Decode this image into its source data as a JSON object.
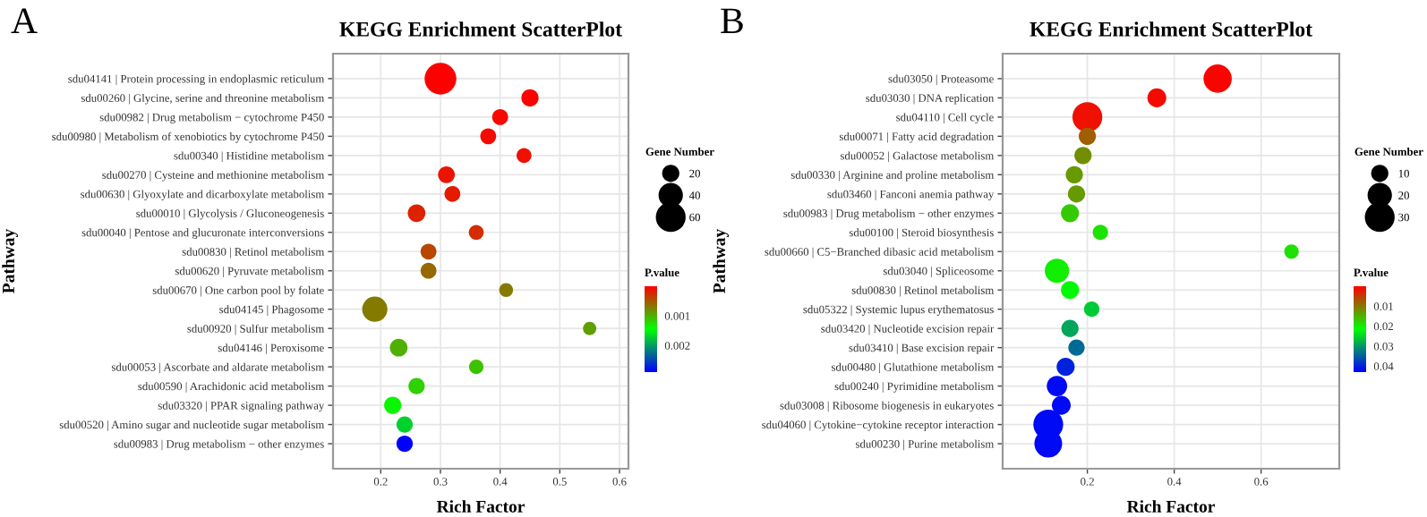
{
  "chart_data": [
    {
      "type": "bubble",
      "title": "KEGG Enrichment ScatterPlot",
      "xlabel": "Rich Factor",
      "ylabel": "Pathway",
      "legend_title": "Gene Number",
      "clabel": "P.value",
      "annotations": [
        "A"
      ],
      "orientation": "horizontal",
      "grid": true,
      "categories": [
        "sdu04141 | Protein processing in endoplasmic reticulum",
        "sdu00260 | Glycine, serine and threonine metabolism",
        "sdu00982 | Drug metabolism − cytochrome P450",
        "sdu00980 | Metabolism of xenobiotics by cytochrome P450",
        "sdu00340 | Histidine metabolism",
        "sdu00270 | Cysteine and methionine metabolism",
        "sdu00630 | Glyoxylate and dicarboxylate metabolism",
        "sdu00010 | Glycolysis / Gluconeogenesis",
        "sdu00040 | Pentose and glucuronate interconversions",
        "sdu00830 | Retinol metabolism",
        "sdu00620 | Pyruvate metabolism",
        "sdu00670 | One carbon pool by folate",
        "sdu04145 | Phagosome",
        "sdu00920 | Sulfur metabolism",
        "sdu04146 | Peroxisome",
        "sdu00053 | Ascorbate and aldarate metabolism",
        "sdu00590 | Arachidonic acid metabolism",
        "sdu03320 | PPAR signaling pathway",
        "sdu00520 | Amino sugar and nucleotide sugar metabolism",
        "sdu00983 | Drug metabolism − other enzymes"
      ],
      "values": [
        0.3,
        0.45,
        0.4,
        0.38,
        0.44,
        0.31,
        0.32,
        0.26,
        0.36,
        0.28,
        0.28,
        0.41,
        0.19,
        0.55,
        0.23,
        0.36,
        0.26,
        0.22,
        0.24,
        0.24
      ],
      "sizes": [
        68,
        20,
        17,
        17,
        15,
        19,
        17,
        21,
        15,
        17,
        17,
        13,
        43,
        12,
        21,
        14,
        18,
        20,
        18,
        18
      ],
      "cvalues": [
        1e-05,
        3e-05,
        5e-05,
        6e-05,
        0.0001,
        0.00012,
        0.00015,
        0.0002,
        0.00025,
        0.0004,
        0.0006,
        0.0007,
        0.0007,
        0.0009,
        0.001,
        0.0011,
        0.0012,
        0.0014,
        0.0017,
        0.0029
      ],
      "size_legend": [
        20,
        40,
        60
      ],
      "clim": [
        0,
        0.0029
      ],
      "cticks": [
        0.001,
        0.002
      ],
      "xlim": [
        0.12,
        0.615
      ],
      "xticks": [
        0.2,
        0.3,
        0.4,
        0.5,
        0.6
      ]
    },
    {
      "type": "bubble",
      "title": "KEGG Enrichment ScatterPlot",
      "xlabel": "Rich Factor",
      "ylabel": "Pathway",
      "legend_title": "Gene Number",
      "clabel": "P.value",
      "annotations": [
        "B"
      ],
      "orientation": "horizontal",
      "grid": true,
      "categories": [
        "sdu03050 | Proteasome",
        "sdu03030 | DNA replication",
        "sdu04110 | Cell cycle",
        "sdu00071 | Fatty acid degradation",
        "sdu00052 | Galactose metabolism",
        "sdu00330 | Arginine and proline metabolism",
        "sdu03460 | Fanconi anemia pathway",
        "sdu00983 | Drug metabolism − other enzymes",
        "sdu00100 | Steroid biosynthesis",
        "sdu00660 | C5−Branched dibasic acid metabolism",
        "sdu03040 | Spliceosome",
        "sdu00830 | Retinol metabolism",
        "sdu05322 | Systemic lupus erythematosus",
        "sdu03420 | Nucleotide excision repair",
        "sdu03410 | Base excision repair",
        "sdu00480 | Glutathione metabolism",
        "sdu00240 | Pyrimidine metabolism",
        "sdu03008 | Ribosome biogenesis in eukaryotes",
        "sdu04060 | Cytokine−cytokine receptor interaction",
        "sdu00230 | Purine metabolism"
      ],
      "values": [
        0.5,
        0.36,
        0.2,
        0.2,
        0.19,
        0.17,
        0.175,
        0.16,
        0.23,
        0.67,
        0.13,
        0.16,
        0.21,
        0.16,
        0.175,
        0.15,
        0.13,
        0.14,
        0.11,
        0.11
      ],
      "sizes": [
        27,
        12,
        30,
        10,
        10,
        10,
        10,
        11,
        8,
        7,
        20,
        11,
        8,
        10,
        9,
        11,
        14,
        12,
        30,
        26
      ],
      "cvalues": [
        0.0005,
        0.001,
        0.0015,
        0.008,
        0.012,
        0.013,
        0.013,
        0.017,
        0.019,
        0.019,
        0.02,
        0.022,
        0.026,
        0.029,
        0.034,
        0.04,
        0.042,
        0.042,
        0.042,
        0.042
      ],
      "size_legend": [
        10,
        20,
        30
      ],
      "clim": [
        0,
        0.043
      ],
      "cticks": [
        0.01,
        0.02,
        0.03,
        0.04
      ],
      "xlim": [
        0.005,
        0.78
      ],
      "xticks": [
        0.2,
        0.4,
        0.6
      ]
    }
  ]
}
